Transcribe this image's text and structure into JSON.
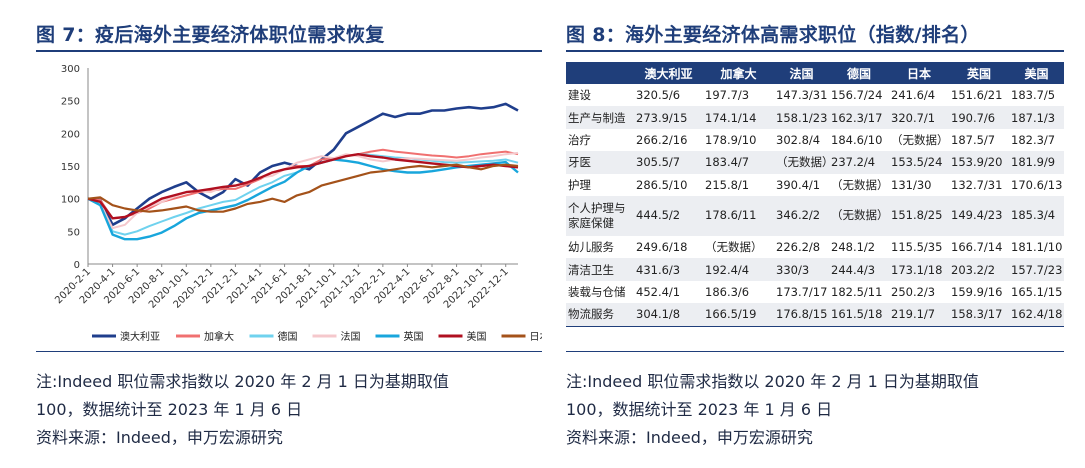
{
  "left": {
    "title": "图 7：疫后海外主要经济体职位需求恢复",
    "notes": [
      "注:Indeed 职位需求指数以 2020 年 2 月 1 日为基期取值",
      "100，数据统计至 2023 年 1 月 6 日",
      "资料来源：Indeed，申万宏源研究"
    ]
  },
  "right": {
    "title": "图 8：海外主要经济体高需求职位（指数/排名）",
    "notes": [
      "注:Indeed 职位需求指数以 2020 年 2 月 1 日为基期取值",
      "100，数据统计至 2023 年 1 月 6 日",
      "资料来源：Indeed，申万宏源研究"
    ]
  },
  "chart_data": [
    {
      "type": "line",
      "title": "",
      "xlabel": "",
      "ylabel": "",
      "ylim": [
        0,
        300
      ],
      "yticks": [
        0,
        50,
        100,
        150,
        200,
        250,
        300
      ],
      "x_tick_labels": [
        "2020-2-1",
        "2020-4-1",
        "2020-6-1",
        "2020-8-1",
        "2020-10-1",
        "2020-12-1",
        "2021-2-1",
        "2021-4-1",
        "2021-6-1",
        "2021-8-1",
        "2021-10-1",
        "2021-12-1",
        "2022-2-1",
        "2022-4-1",
        "2022-6-1",
        "2022-8-1",
        "2022-10-1",
        "2022-12-1"
      ],
      "x": [
        "2020-02",
        "2020-03",
        "2020-04",
        "2020-05",
        "2020-06",
        "2020-07",
        "2020-08",
        "2020-09",
        "2020-10",
        "2020-11",
        "2020-12",
        "2021-01",
        "2021-02",
        "2021-03",
        "2021-04",
        "2021-05",
        "2021-06",
        "2021-07",
        "2021-08",
        "2021-09",
        "2021-10",
        "2021-11",
        "2021-12",
        "2022-01",
        "2022-02",
        "2022-03",
        "2022-04",
        "2022-05",
        "2022-06",
        "2022-07",
        "2022-08",
        "2022-09",
        "2022-10",
        "2022-11",
        "2022-12",
        "2023-01"
      ],
      "grid": false,
      "legend": "bottom",
      "series": [
        {
          "name": "澳大利亚",
          "color": "#1f3e8c",
          "width": 2.6,
          "values": [
            100,
            98,
            60,
            70,
            85,
            100,
            110,
            118,
            125,
            110,
            100,
            110,
            130,
            120,
            140,
            150,
            155,
            150,
            145,
            160,
            175,
            200,
            210,
            220,
            230,
            225,
            230,
            230,
            235,
            235,
            238,
            240,
            238,
            240,
            245,
            235
          ]
        },
        {
          "name": "加拿大",
          "color": "#f07070",
          "width": 2,
          "values": [
            100,
            98,
            70,
            72,
            78,
            85,
            95,
            100,
            105,
            110,
            112,
            115,
            115,
            122,
            130,
            140,
            145,
            150,
            150,
            160,
            162,
            165,
            168,
            172,
            175,
            172,
            170,
            168,
            166,
            165,
            163,
            165,
            168,
            170,
            172,
            168
          ]
        },
        {
          "name": "德国",
          "color": "#6fd2ee",
          "width": 2,
          "values": [
            100,
            95,
            50,
            45,
            50,
            58,
            65,
            72,
            78,
            85,
            90,
            95,
            98,
            108,
            118,
            125,
            135,
            140,
            150,
            155,
            160,
            165,
            168,
            167,
            165,
            163,
            162,
            160,
            158,
            156,
            155,
            156,
            157,
            158,
            160,
            155
          ]
        },
        {
          "name": "法国",
          "color": "#f5c8cc",
          "width": 2,
          "values": [
            100,
            92,
            55,
            60,
            78,
            88,
            95,
            103,
            110,
            112,
            110,
            118,
            120,
            125,
            132,
            135,
            145,
            155,
            160,
            165,
            162,
            168,
            165,
            160,
            157,
            160,
            162,
            161,
            160,
            159,
            158,
            160,
            163,
            165,
            168,
            170
          ]
        },
        {
          "name": "英国",
          "color": "#18a6dc",
          "width": 2.4,
          "values": [
            100,
            90,
            45,
            38,
            38,
            42,
            48,
            58,
            70,
            78,
            82,
            86,
            90,
            98,
            108,
            118,
            126,
            140,
            150,
            155,
            160,
            158,
            155,
            150,
            145,
            142,
            140,
            140,
            142,
            145,
            148,
            150,
            152,
            154,
            156,
            140
          ]
        },
        {
          "name": "美国",
          "color": "#b01020",
          "width": 2.4,
          "values": [
            100,
            95,
            70,
            72,
            80,
            90,
            100,
            105,
            110,
            112,
            115,
            118,
            120,
            125,
            132,
            140,
            145,
            148,
            150,
            155,
            160,
            165,
            168,
            165,
            163,
            160,
            158,
            156,
            154,
            152,
            150,
            148,
            150,
            152,
            150,
            148
          ]
        },
        {
          "name": "日本",
          "color": "#a4521a",
          "width": 2.2,
          "values": [
            100,
            102,
            90,
            85,
            82,
            80,
            82,
            85,
            88,
            82,
            80,
            80,
            85,
            92,
            95,
            100,
            95,
            105,
            110,
            120,
            125,
            130,
            135,
            140,
            142,
            145,
            148,
            150,
            148,
            150,
            152,
            148,
            145,
            150,
            152,
            150
          ]
        }
      ]
    },
    {
      "type": "table",
      "columns": [
        "",
        "澳大利亚",
        "加拿大",
        "法国",
        "德国",
        "日本",
        "英国",
        "美国"
      ],
      "rows": [
        [
          "建设",
          "320.5/6",
          "197.7/3",
          "147.3/31",
          "156.7/24",
          "241.6/4",
          "151.6/21",
          "183.7/5"
        ],
        [
          "生产与制造",
          "273.9/15",
          "174.1/14",
          "158.1/23",
          "162.3/17",
          "320.7/1",
          "190.7/6",
          "187.1/3"
        ],
        [
          "治疗",
          "266.2/16",
          "178.9/10",
          "302.8/4",
          "184.6/10",
          "（无数据）",
          "187.5/7",
          "182.3/7"
        ],
        [
          "牙医",
          "305.5/7",
          "183.4/7",
          "（无数据）",
          "237.2/4",
          "153.5/24",
          "153.9/20",
          "181.9/9"
        ],
        [
          "护理",
          "286.5/10",
          "215.8/1",
          "390.4/1",
          "（无数据）",
          "131/30",
          "132.7/31",
          "170.6/13"
        ],
        [
          "个人护理与家庭保健",
          "444.5/2",
          "178.6/11",
          "346.2/2",
          "（无数据）",
          "151.8/25",
          "149.4/23",
          "185.3/4"
        ],
        [
          "幼儿服务",
          "249.6/18",
          "（无数据）",
          "226.2/8",
          "248.1/2",
          "115.5/35",
          "166.7/14",
          "181.1/10"
        ],
        [
          "清洁卫生",
          "431.6/3",
          "192.4/4",
          "330/3",
          "244.4/3",
          "173.1/18",
          "203.2/2",
          "157.7/23"
        ],
        [
          "装载与仓储",
          "452.4/1",
          "186.3/6",
          "173.7/17",
          "182.5/11",
          "250.2/3",
          "159.9/16",
          "165.1/15"
        ],
        [
          "物流服务",
          "304.1/8",
          "166.5/19",
          "176.8/15",
          "161.5/18",
          "219.1/7",
          "158.3/17",
          "162.4/18"
        ]
      ]
    }
  ]
}
